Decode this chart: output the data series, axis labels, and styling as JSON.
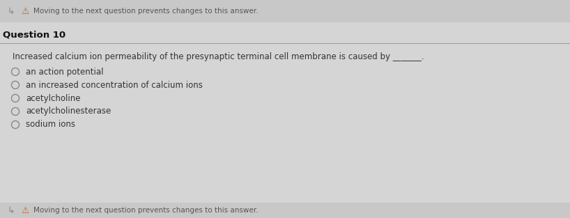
{
  "outer_bg": "#c8c8c8",
  "inner_bg": "#dcdcdc",
  "top_bar_bg": "#c8c8c8",
  "warning_text": "Moving to the next question prevents changes to this answer.",
  "warning_text_color": "#555555",
  "warning_icon_color": "#d46010",
  "question_label": "Question 10",
  "question_label_color": "#111111",
  "question_label_fontsize": 9.5,
  "divider_color": "#999999",
  "question_text": "Increased calcium ion permeability of the presynaptic terminal cell membrane is caused by _______.",
  "question_text_color": "#333333",
  "question_text_fontsize": 8.5,
  "options": [
    "an action potential",
    "an increased concentration of calcium ions",
    "acetylcholine",
    "acetylcholinesterase",
    "sodium ions"
  ],
  "option_color": "#333333",
  "option_fontsize": 8.5,
  "circle_edgecolor": "#888888",
  "bottom_warning_text": "Moving to the next question prevents changes to this answer.",
  "bottom_warning_color": "#555555"
}
